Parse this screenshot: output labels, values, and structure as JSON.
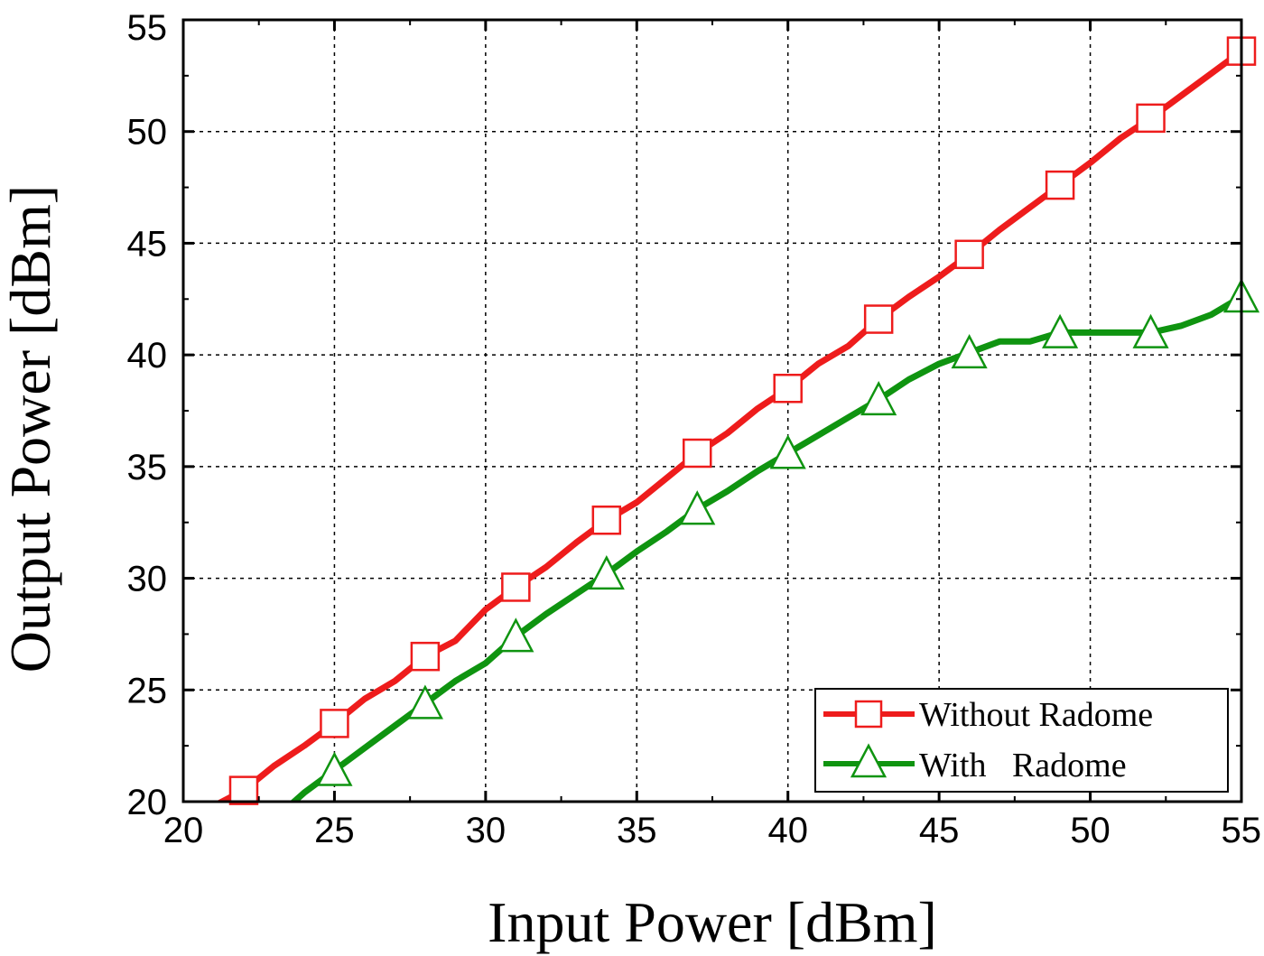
{
  "chart_data": {
    "type": "line",
    "xlabel": "Input Power [dBm]",
    "ylabel": "Output Power [dBm]",
    "xlim": [
      20,
      55
    ],
    "ylim": [
      20,
      55
    ],
    "xticks": [
      20,
      25,
      30,
      35,
      40,
      45,
      50,
      55
    ],
    "yticks": [
      20,
      25,
      30,
      35,
      40,
      45,
      50,
      55
    ],
    "x_tick_labels": [
      "20",
      "25",
      "30",
      "35",
      "40",
      "45",
      "50",
      "55"
    ],
    "y_tick_labels": [
      "20",
      "25",
      "30",
      "35",
      "40",
      "45",
      "50",
      "55"
    ],
    "grid": true,
    "legend_position": "bottom-right",
    "series": [
      {
        "name": "Without Radome",
        "color": "#ee1c1c",
        "marker": "square",
        "x": [
          21,
          22,
          23,
          24,
          25,
          26,
          27,
          28,
          29,
          30,
          31,
          32,
          33,
          34,
          35,
          36,
          37,
          38,
          39,
          40,
          41,
          42,
          43,
          44,
          45,
          46,
          47,
          48,
          49,
          50,
          51,
          52,
          53,
          54,
          55
        ],
        "y": [
          19.8,
          20.5,
          21.6,
          22.5,
          23.5,
          24.6,
          25.4,
          26.5,
          27.2,
          28.6,
          29.6,
          30.5,
          31.6,
          32.6,
          33.4,
          34.5,
          35.6,
          36.5,
          37.6,
          38.5,
          39.6,
          40.4,
          41.6,
          42.6,
          43.5,
          44.5,
          45.6,
          46.6,
          47.6,
          48.6,
          49.7,
          50.6,
          51.6,
          52.6,
          53.6
        ],
        "marker_x": [
          22,
          25,
          28,
          31,
          34,
          37,
          40,
          43,
          46,
          49,
          52,
          55
        ]
      },
      {
        "name": "With   Radome",
        "color": "#0f9410",
        "marker": "triangle",
        "x": [
          23.5,
          24,
          25,
          26,
          27,
          28,
          29,
          30,
          31,
          32,
          33,
          34,
          35,
          36,
          37,
          38,
          39,
          40,
          41,
          42,
          43,
          44,
          45,
          46,
          47,
          48,
          49,
          50,
          51,
          52,
          53,
          54,
          55
        ],
        "y": [
          19.8,
          20.4,
          21.4,
          22.4,
          23.4,
          24.4,
          25.4,
          26.2,
          27.4,
          28.4,
          29.3,
          30.2,
          31.2,
          32.1,
          33.1,
          33.9,
          34.8,
          35.6,
          36.4,
          37.2,
          38.0,
          38.9,
          39.6,
          40.1,
          40.6,
          40.6,
          41.0,
          41.0,
          41.0,
          41.0,
          41.3,
          41.8,
          42.6
        ],
        "marker_x": [
          25,
          28,
          31,
          34,
          37,
          40,
          43,
          46,
          49,
          52,
          55
        ]
      }
    ]
  }
}
